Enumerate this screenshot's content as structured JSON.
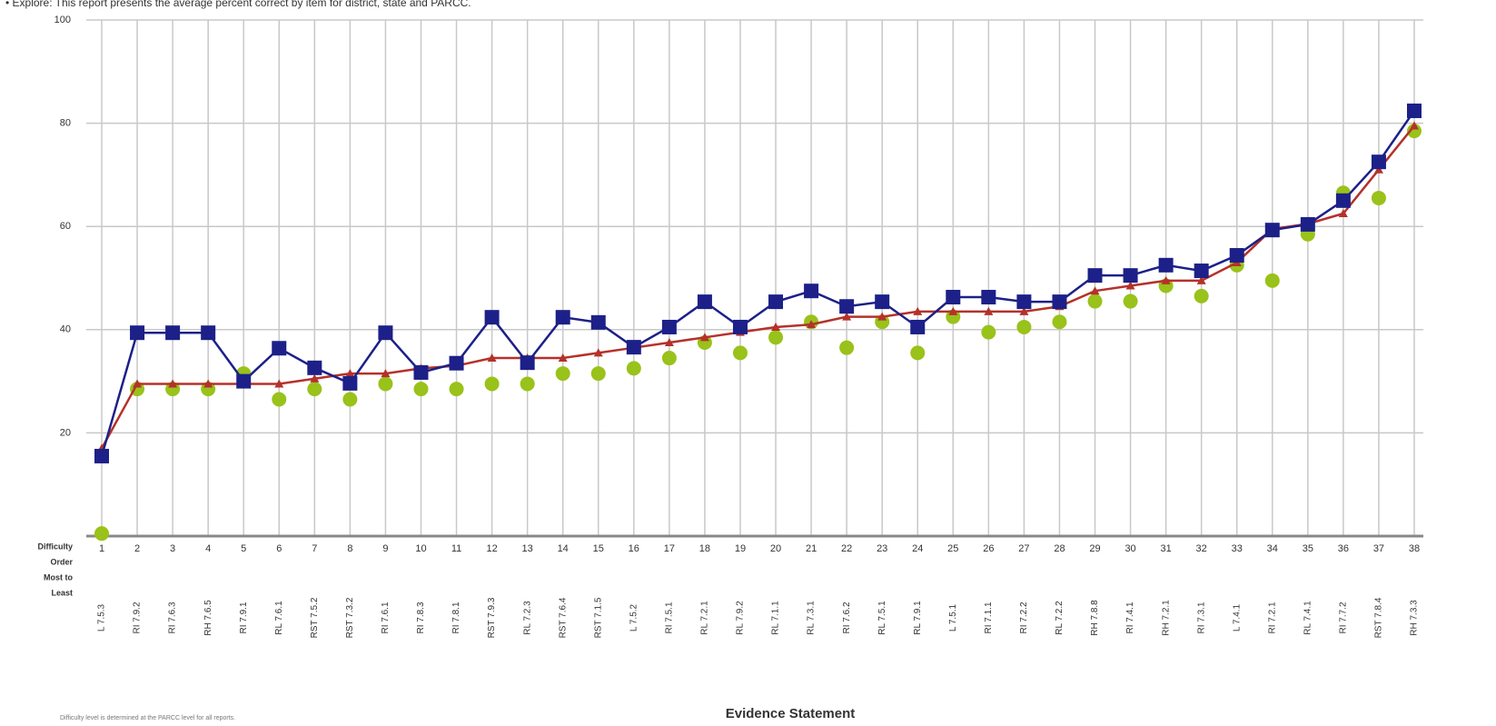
{
  "chart_data": {
    "type": "line",
    "intro": "• Explore: This report presents the average percent correct by item for district, state and PARCC.",
    "x_label": "Evidence Statement",
    "row_label": [
      "Difficulty",
      "Order",
      "Most to",
      "Least"
    ],
    "footnote": "Difficulty level is determined at the PARCC level for all reports.",
    "categories": [
      "1",
      "2",
      "3",
      "4",
      "5",
      "6",
      "7",
      "8",
      "9",
      "10",
      "11",
      "12",
      "13",
      "14",
      "15",
      "16",
      "17",
      "18",
      "19",
      "20",
      "21",
      "22",
      "23",
      "24",
      "25",
      "26",
      "27",
      "28",
      "29",
      "30",
      "31",
      "32",
      "33",
      "34",
      "35",
      "36",
      "37",
      "38"
    ],
    "evidence_statements": [
      "L 7.5.3",
      "RI 7.9.2",
      "RI 7.6.3",
      "RH 7.6.5",
      "RI 7.9.1",
      "RL 7.6.1",
      "RST 7.5.2",
      "RST 7.3.2",
      "RI 7.6.1",
      "RI 7.8.3",
      "RI 7.8.1",
      "RST 7.9.3",
      "RL 7.2.3",
      "RST 7.6.4",
      "RST 7.1.5",
      "L 7.5.2",
      "RI 7.5.1",
      "RL 7.2.1",
      "RL 7.9.2",
      "RL 7.1.1",
      "RL 7.3.1",
      "RI 7.6.2",
      "RL 7.5.1",
      "RL 7.9.1",
      "L 7.5.1",
      "RI 7.1.1",
      "RI 7.2.2",
      "RL 7.2.2",
      "RH 7.8.8",
      "RI 7.4.1",
      "RH 7.2.1",
      "RI 7.3.1",
      "L 7.4.1",
      "RI 7.2.1",
      "RL 7.4.1",
      "RI 7.7.2",
      "RST 7.8.4",
      "RH 7.3.3"
    ],
    "ylim": [
      0,
      100
    ],
    "yticks": [
      20,
      40,
      60,
      80,
      100
    ],
    "grid": true,
    "series": [
      {
        "color": "#99c21a",
        "marker": "circle",
        "line": false,
        "values": [
          0.5,
          28.5,
          28.5,
          28.5,
          31.5,
          26.5,
          28.5,
          26.5,
          29.5,
          28.5,
          28.5,
          29.5,
          29.5,
          31.5,
          31.5,
          32.5,
          34.5,
          37.5,
          35.5,
          38.5,
          41.5,
          36.5,
          41.5,
          35.5,
          42.5,
          39.5,
          40.5,
          41.5,
          45.5,
          45.5,
          48.5,
          46.5,
          52.5,
          49.5,
          58.5,
          66.5,
          65.5,
          78.5
        ]
      },
      {
        "color": "#b5312a",
        "marker": "triangle",
        "line": true,
        "values": [
          17,
          29.5,
          29.5,
          29.5,
          29.5,
          29.5,
          30.5,
          31.5,
          31.5,
          32.5,
          33,
          34.5,
          34.5,
          34.5,
          35.5,
          36.5,
          37.5,
          38.5,
          39.5,
          40.5,
          41,
          42.5,
          42.5,
          43.5,
          43.5,
          43.5,
          43.5,
          44.5,
          47.5,
          48.5,
          49.5,
          49.5,
          53,
          59.5,
          60.5,
          62.5,
          71,
          79.5
        ]
      },
      {
        "color": "#1c2088",
        "marker": "square",
        "line": true,
        "values": [
          15.5,
          39.4,
          39.4,
          39.4,
          30,
          36.4,
          32.6,
          29.6,
          39.4,
          31.7,
          33.5,
          42.4,
          33.6,
          42.4,
          41.4,
          36.6,
          40.5,
          45.4,
          40.5,
          45.4,
          47.5,
          44.5,
          45.4,
          40.5,
          46.3,
          46.3,
          45.4,
          45.4,
          50.5,
          50.5,
          52.5,
          51.4,
          54.4,
          59.3,
          60.4,
          65,
          72.5,
          82.4
        ]
      }
    ]
  }
}
